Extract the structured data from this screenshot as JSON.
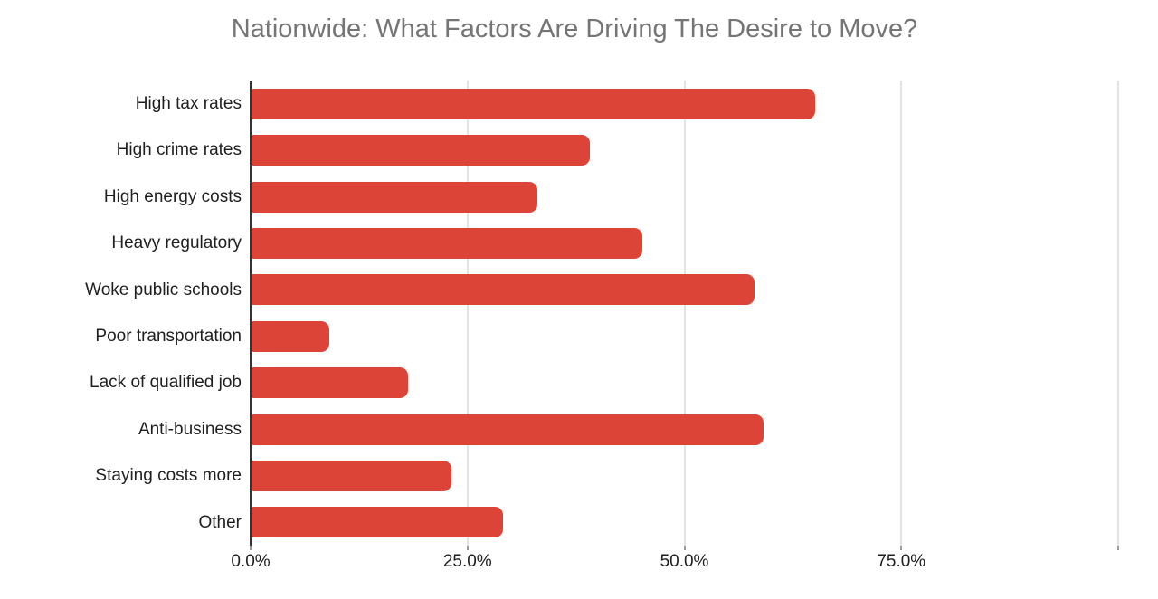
{
  "chart_data": {
    "type": "bar",
    "orientation": "horizontal",
    "title": "Nationwide: What Factors Are Driving The Desire to Move?",
    "categories": [
      "High tax rates",
      "High crime rates",
      "High energy costs",
      "Heavy regulatory",
      "Woke public schools",
      "Poor transportation",
      "Lack of qualified job",
      "Anti-business",
      "Staying costs more",
      "Other"
    ],
    "values": [
      65,
      39,
      33,
      45,
      58,
      9,
      18,
      59,
      23,
      29
    ],
    "value_unit": "%",
    "xlabel": "",
    "ylabel": "",
    "xlim": [
      0,
      100
    ],
    "x_ticks": [
      {
        "value": 0,
        "label": "0.0%"
      },
      {
        "value": 25,
        "label": "25.0%"
      },
      {
        "value": 50,
        "label": "50.0%"
      },
      {
        "value": 75,
        "label": "75.0%"
      },
      {
        "value": 100,
        "label": ""
      }
    ],
    "grid": "vertical-only",
    "legend": "none",
    "colors": {
      "bar": "#db4437",
      "title": "#757575",
      "axis_line": "#333333",
      "gridline": "#e3e3e3",
      "label": "#1f1f1f",
      "background": "#ffffff"
    }
  }
}
